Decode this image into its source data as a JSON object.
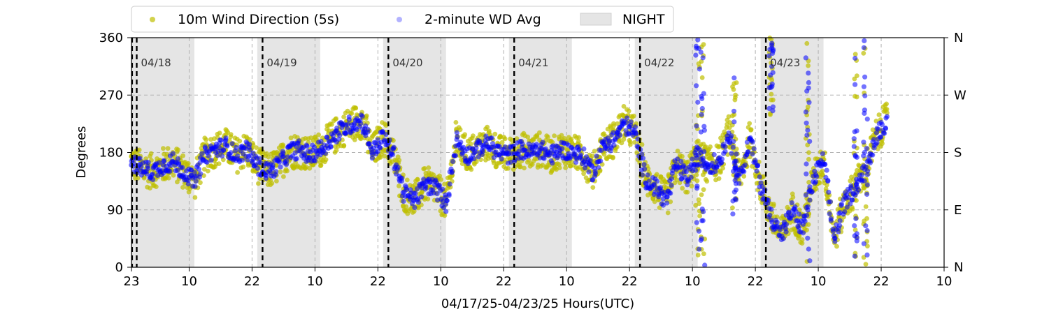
{
  "chart_data": {
    "type": "scatter",
    "xlabel": "04/17/25-04/23/25  Hours(UTC)",
    "ylabel": "Degrees",
    "ylim": [
      0,
      360
    ],
    "x_unit": "hours since 2025-04-17 23:00 UTC",
    "xlim": [
      0,
      155
    ],
    "x_ticks": [
      {
        "hour": 0,
        "label": "23"
      },
      {
        "hour": 11,
        "label": "10"
      },
      {
        "hour": 23,
        "label": "22"
      },
      {
        "hour": 35,
        "label": "10"
      },
      {
        "hour": 47,
        "label": "22"
      },
      {
        "hour": 59,
        "label": "10"
      },
      {
        "hour": 71,
        "label": "22"
      },
      {
        "hour": 83,
        "label": "10"
      },
      {
        "hour": 95,
        "label": "22"
      },
      {
        "hour": 107,
        "label": "10"
      },
      {
        "hour": 119,
        "label": "22"
      },
      {
        "hour": 131,
        "label": "10"
      },
      {
        "hour": 143,
        "label": "22"
      },
      {
        "hour": 155,
        "label": "10"
      }
    ],
    "y_ticks_left": [
      0,
      90,
      180,
      270,
      360
    ],
    "y_ticks_right": [
      {
        "value": 0,
        "label": "N"
      },
      {
        "value": 90,
        "label": "E"
      },
      {
        "value": 180,
        "label": "S"
      },
      {
        "value": 270,
        "label": "W"
      },
      {
        "value": 360,
        "label": "N"
      }
    ],
    "grid": "dashed at x ticks and y ticks",
    "legend": {
      "placement": "top-left, above plot",
      "entries": [
        {
          "label": "10m Wind Direction (5s)",
          "color": "#bfbf00",
          "marker": "dot"
        },
        {
          "label": "2-minute WD Avg",
          "color": "#0000ff",
          "marker": "dot"
        },
        {
          "label": "NIGHT",
          "color": "#e5e5e5",
          "marker": "box"
        }
      ]
    },
    "night_periods": [
      [
        0,
        12
      ],
      [
        24,
        36
      ],
      [
        48,
        60
      ],
      [
        72,
        84
      ],
      [
        96,
        108
      ],
      [
        120,
        132
      ]
    ],
    "day_boundaries": [
      {
        "hour": 1,
        "label": "04/18"
      },
      {
        "hour": 25,
        "label": "04/19"
      },
      {
        "hour": 49,
        "label": "04/20"
      },
      {
        "hour": 73,
        "label": "04/21"
      },
      {
        "hour": 97,
        "label": "04/22"
      },
      {
        "hour": 121,
        "label": "04/23"
      }
    ],
    "series": [
      {
        "name": "10m Wind Direction (5s)",
        "color": "#bfbf00",
        "spread_deg": 28,
        "x": [
          0,
          2,
          4,
          6,
          8,
          10,
          12,
          14,
          16,
          18,
          20,
          22,
          24,
          26,
          28,
          30,
          32,
          34,
          36,
          38,
          40,
          42,
          44,
          46,
          48,
          50,
          52,
          54,
          56,
          58,
          60,
          62,
          64,
          66,
          68,
          70,
          72,
          74,
          76,
          78,
          80,
          82,
          84,
          86,
          88,
          90,
          92,
          94,
          96,
          98,
          100,
          102,
          104,
          106,
          108,
          110,
          112,
          114,
          116,
          118,
          120,
          122,
          124,
          126,
          128,
          130,
          132,
          134,
          136,
          138,
          140,
          142,
          144
        ],
        "y": [
          165,
          155,
          150,
          160,
          165,
          150,
          135,
          175,
          185,
          190,
          175,
          185,
          160,
          150,
          160,
          180,
          185,
          175,
          185,
          200,
          215,
          225,
          230,
          180,
          205,
          175,
          115,
          105,
          130,
          125,
          100,
          200,
          175,
          185,
          195,
          180,
          175,
          185,
          180,
          185,
          175,
          185,
          180,
          175,
          150,
          190,
          200,
          225,
          210,
          140,
          125,
          105,
          160,
          140,
          175,
          160,
          165,
          210,
          140,
          200,
          130,
          80,
          50,
          90,
          60,
          135,
          170,
          45,
          100,
          125,
          150,
          205,
          230
        ]
      },
      {
        "name": "2-minute WD Avg",
        "color": "#0000ff",
        "spread_deg": 14,
        "x": [
          0,
          2,
          4,
          6,
          8,
          10,
          12,
          14,
          16,
          18,
          20,
          22,
          24,
          26,
          28,
          30,
          32,
          34,
          36,
          38,
          40,
          42,
          44,
          46,
          48,
          50,
          52,
          54,
          56,
          58,
          60,
          62,
          64,
          66,
          68,
          70,
          72,
          74,
          76,
          78,
          80,
          82,
          84,
          86,
          88,
          90,
          92,
          94,
          96,
          98,
          100,
          102,
          104,
          106,
          108,
          110,
          112,
          114,
          116,
          118,
          120,
          122,
          124,
          126,
          128,
          130,
          132,
          134,
          136,
          138,
          140,
          142,
          144
        ],
        "y": [
          165,
          155,
          150,
          160,
          165,
          150,
          135,
          175,
          185,
          190,
          175,
          185,
          160,
          150,
          160,
          180,
          185,
          175,
          185,
          200,
          215,
          225,
          230,
          180,
          205,
          175,
          115,
          105,
          130,
          125,
          100,
          200,
          175,
          185,
          195,
          180,
          175,
          185,
          180,
          185,
          175,
          185,
          180,
          175,
          150,
          190,
          200,
          225,
          210,
          140,
          125,
          105,
          160,
          140,
          175,
          160,
          165,
          210,
          140,
          200,
          130,
          80,
          50,
          90,
          60,
          135,
          170,
          45,
          100,
          125,
          150,
          205,
          230
        ]
      }
    ],
    "vertical_spikes": [
      {
        "x": 108,
        "ymin": 0,
        "ymax": 360
      },
      {
        "x": 109,
        "ymin": 0,
        "ymax": 360
      },
      {
        "x": 115,
        "ymin": 80,
        "ymax": 310
      },
      {
        "x": 122,
        "ymin": 230,
        "ymax": 360
      },
      {
        "x": 129,
        "ymin": 0,
        "ymax": 360
      },
      {
        "x": 138,
        "ymin": 0,
        "ymax": 360
      },
      {
        "x": 140,
        "ymin": 0,
        "ymax": 360
      }
    ]
  }
}
